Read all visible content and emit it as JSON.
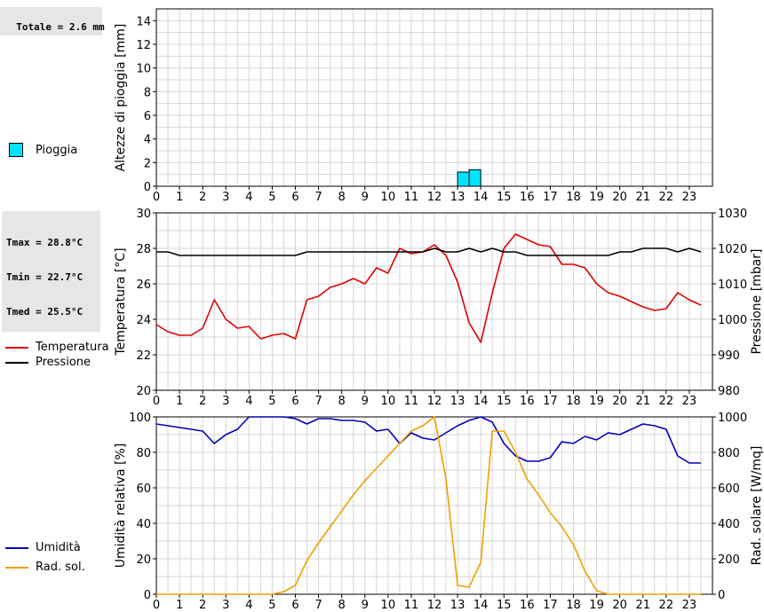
{
  "summary": {
    "total_rain": "Totale = 2.6 mm",
    "tmax": "Tmax = 28.8°C",
    "tmin": "Tmin = 22.7°C",
    "tmed": "Tmed = 25.5°C"
  },
  "legends": {
    "rain": {
      "label": "Pioggia",
      "color": "#00e5ff"
    },
    "temperature": {
      "label": "Temperatura",
      "color": "#e00000"
    },
    "pressure": {
      "label": "Pressione",
      "color": "#000000"
    },
    "humidity": {
      "label": "Umidità",
      "color": "#0000c0"
    },
    "solar": {
      "label": "Rad. sol.",
      "color": "#f0a000"
    }
  },
  "chart_data": [
    {
      "type": "bar",
      "ylabel": "Altezze di pioggia [mm]",
      "ylim": [
        0,
        15
      ],
      "yticks": [
        0,
        2,
        4,
        6,
        8,
        10,
        12,
        14
      ],
      "xticks": [
        0,
        1,
        2,
        3,
        4,
        5,
        6,
        7,
        8,
        9,
        10,
        11,
        12,
        13,
        14,
        15,
        16,
        17,
        18,
        19,
        20,
        21,
        22,
        23
      ],
      "grid": true,
      "series": [
        {
          "name": "Pioggia",
          "color": "#00e5ff",
          "bars": [
            {
              "x": 13.25,
              "value": 1.2
            },
            {
              "x": 13.75,
              "value": 1.4
            }
          ]
        }
      ]
    },
    {
      "type": "line",
      "ylabel": "Temperatura [°C]",
      "ylim": [
        20,
        30
      ],
      "yticks": [
        20,
        22,
        24,
        26,
        28,
        30
      ],
      "y2label": "Pressione [mbar]",
      "y2lim": [
        980,
        1030
      ],
      "y2ticks": [
        980,
        990,
        1000,
        1010,
        1020,
        1030
      ],
      "xticks": [
        0,
        1,
        2,
        3,
        4,
        5,
        6,
        7,
        8,
        9,
        10,
        11,
        12,
        13,
        14,
        15,
        16,
        17,
        18,
        19,
        20,
        21,
        22,
        23
      ],
      "grid": true,
      "series": [
        {
          "name": "Temperatura",
          "axis": "left",
          "color": "#e00000",
          "x": [
            0,
            0.5,
            1,
            1.5,
            2,
            2.5,
            3,
            3.5,
            4,
            4.5,
            5,
            5.5,
            6,
            6.5,
            7,
            7.5,
            8,
            8.5,
            9,
            9.5,
            10,
            10.5,
            11,
            11.5,
            12,
            12.5,
            13,
            13.5,
            14,
            14.5,
            15,
            15.5,
            16,
            16.5,
            17,
            17.5,
            18,
            18.5,
            19,
            19.5,
            20,
            20.5,
            21,
            21.5,
            22,
            22.5,
            23,
            23.5
          ],
          "y": [
            23.7,
            23.3,
            23.1,
            23.1,
            23.5,
            25.1,
            24.0,
            23.5,
            23.6,
            22.9,
            23.1,
            23.2,
            22.9,
            25.1,
            25.3,
            25.8,
            26.0,
            26.3,
            26.0,
            26.9,
            26.6,
            28.0,
            27.7,
            27.8,
            28.2,
            27.6,
            26.1,
            23.8,
            22.7,
            25.5,
            28.0,
            28.8,
            28.5,
            28.2,
            28.1,
            27.1,
            27.1,
            26.9,
            26.0,
            25.5,
            25.3,
            25.0,
            24.7,
            24.5,
            24.6,
            25.5,
            25.1,
            24.8
          ]
        },
        {
          "name": "Pressione",
          "axis": "right",
          "color": "#000000",
          "x": [
            0,
            0.5,
            1,
            1.5,
            2,
            2.5,
            3,
            3.5,
            4,
            4.5,
            5,
            5.5,
            6,
            6.5,
            7,
            7.5,
            8,
            8.5,
            9,
            9.5,
            10,
            10.5,
            11,
            11.5,
            12,
            12.5,
            13,
            13.5,
            14,
            14.5,
            15,
            15.5,
            16,
            16.5,
            17,
            17.5,
            18,
            18.5,
            19,
            19.5,
            20,
            20.5,
            21,
            21.5,
            22,
            22.5,
            23,
            23.5
          ],
          "y": [
            1019,
            1019,
            1018,
            1018,
            1018,
            1018,
            1018,
            1018,
            1018,
            1018,
            1018,
            1018,
            1018,
            1019,
            1019,
            1019,
            1019,
            1019,
            1019,
            1019,
            1019,
            1019,
            1019,
            1019,
            1020,
            1019,
            1019,
            1020,
            1019,
            1020,
            1019,
            1019,
            1018,
            1018,
            1018,
            1018,
            1018,
            1018,
            1018,
            1018,
            1019,
            1019,
            1020,
            1020,
            1020,
            1019,
            1020,
            1019
          ]
        }
      ]
    },
    {
      "type": "line",
      "ylabel": "Umidità relativa [%]",
      "ylim": [
        0,
        100
      ],
      "yticks": [
        0,
        20,
        40,
        60,
        80,
        100
      ],
      "y2label": "Rad. solare [W/mq]",
      "y2lim": [
        0,
        1000
      ],
      "y2ticks": [
        0,
        200,
        400,
        600,
        800,
        1000
      ],
      "xticks": [
        0,
        1,
        2,
        3,
        4,
        5,
        6,
        7,
        8,
        9,
        10,
        11,
        12,
        13,
        14,
        15,
        16,
        17,
        18,
        19,
        20,
        21,
        22,
        23
      ],
      "grid": true,
      "series": [
        {
          "name": "Umidità",
          "axis": "left",
          "color": "#0000c0",
          "x": [
            0,
            0.5,
            1,
            1.5,
            2,
            2.5,
            3,
            3.5,
            4,
            4.5,
            5,
            5.5,
            6,
            6.5,
            7,
            7.5,
            8,
            8.5,
            9,
            9.5,
            10,
            10.5,
            11,
            11.5,
            12,
            12.5,
            13,
            13.5,
            14,
            14.5,
            15,
            15.5,
            16,
            16.5,
            17,
            17.5,
            18,
            18.5,
            19,
            19.5,
            20,
            20.5,
            21,
            21.5,
            22,
            22.5,
            23,
            23.5
          ],
          "y": [
            96,
            95,
            94,
            93,
            92,
            85,
            90,
            93,
            100,
            100,
            100,
            100,
            99,
            96,
            99,
            99,
            98,
            98,
            97,
            92,
            93,
            85,
            91,
            88,
            87,
            91,
            95,
            98,
            100,
            97,
            85,
            78,
            75,
            75,
            77,
            86,
            85,
            89,
            87,
            91,
            90,
            93,
            96,
            95,
            93,
            78,
            74,
            74
          ]
        },
        {
          "name": "Rad. sol.",
          "axis": "right",
          "color": "#f0a000",
          "x": [
            0,
            0.5,
            1,
            1.5,
            2,
            2.5,
            3,
            3.5,
            4,
            4.5,
            5,
            5.5,
            6,
            6.5,
            7,
            7.5,
            8,
            8.5,
            9,
            9.5,
            10,
            10.5,
            11,
            11.5,
            12,
            12.5,
            13,
            13.5,
            14,
            14.5,
            15,
            15.5,
            16,
            16.5,
            17,
            17.5,
            18,
            18.5,
            19,
            19.5,
            20,
            20.5,
            21,
            21.5,
            22,
            22.5,
            23,
            23.5
          ],
          "y": [
            0,
            0,
            0,
            0,
            0,
            0,
            0,
            0,
            0,
            0,
            0,
            15,
            50,
            190,
            290,
            380,
            470,
            560,
            640,
            710,
            780,
            850,
            920,
            950,
            1000,
            650,
            50,
            40,
            180,
            920,
            920,
            800,
            650,
            560,
            460,
            380,
            280,
            130,
            20,
            0,
            0,
            0,
            0,
            0,
            0,
            0,
            0,
            0
          ]
        }
      ]
    }
  ]
}
